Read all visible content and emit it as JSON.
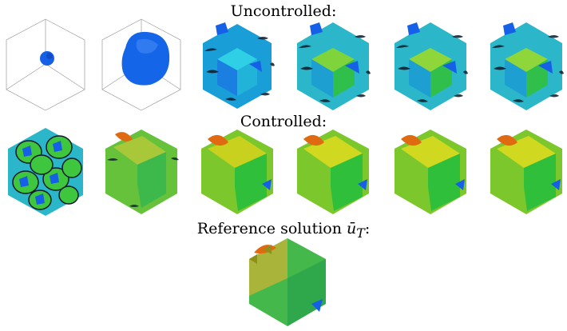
{
  "rows": {
    "uncontrolled": {
      "title": "Uncontrolled:"
    },
    "controlled": {
      "title": "Controlled:"
    },
    "reference": {
      "title_prefix": "Reference solution ",
      "title_math": "ū",
      "title_sub": "T",
      "title_suffix": ":"
    }
  },
  "colors": {
    "box_edge": "#9a9a9a",
    "deep_blue": "#1560e6",
    "cyan": "#22c8e0",
    "green": "#2fbf2f",
    "yellow_green": "#b9d21e",
    "olive": "#8f8f1a",
    "orange": "#e06a12",
    "dark_edge": "#0b1a2a"
  },
  "panels": {
    "uncontrolled": [
      "tiny-blob",
      "sphere",
      "wavy-1",
      "wavy-2",
      "wavy-3",
      "wavy-4"
    ],
    "controlled": [
      "lattice",
      "saddle-1",
      "saddle-2",
      "saddle-3",
      "saddle-4",
      "saddle-5"
    ],
    "reference": [
      "reference-shape"
    ]
  }
}
